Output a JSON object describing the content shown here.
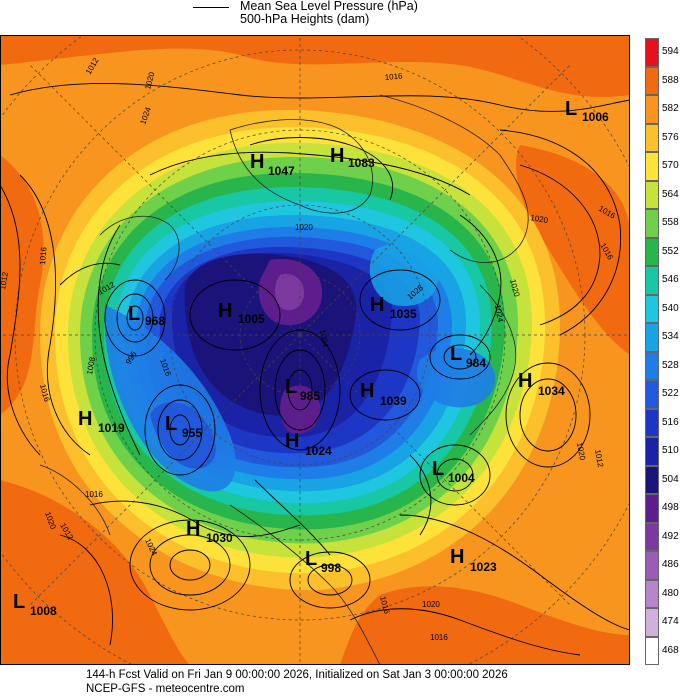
{
  "legend": {
    "pressure_label": "Mean Sea Level Pressure (hPa)",
    "heights_label": "500-hPa Heights (dam)"
  },
  "colorbar": {
    "labels": [
      "594",
      "588",
      "582",
      "576",
      "570",
      "564",
      "558",
      "552",
      "546",
      "540",
      "534",
      "528",
      "522",
      "516",
      "510",
      "504",
      "498",
      "492",
      "486",
      "480",
      "474",
      "468"
    ],
    "colors": [
      "#e8101c",
      "#f26a10",
      "#f7951e",
      "#fbc02b",
      "#fde23a",
      "#c7e23b",
      "#6fd049",
      "#28b54c",
      "#18c7a4",
      "#1ec6e0",
      "#18a4e4",
      "#1e7de6",
      "#2158dc",
      "#1d36c5",
      "#1a22a6",
      "#1a147a",
      "#5e1d8d",
      "#7c3aa0",
      "#9a5cb5",
      "#b785c9",
      "#d2b0dc",
      "#ffffff"
    ]
  },
  "systems": [
    {
      "type": "H",
      "value": "1047"
    },
    {
      "type": "H",
      "value": "1083"
    },
    {
      "type": "L",
      "value": "1006"
    },
    {
      "type": "L",
      "value": "968"
    },
    {
      "type": "H",
      "value": "1005"
    },
    {
      "type": "H",
      "value": "1035"
    },
    {
      "type": "L",
      "value": "984"
    },
    {
      "type": "H",
      "value": "1034"
    },
    {
      "type": "L",
      "value": "955"
    },
    {
      "type": "L",
      "value": "985"
    },
    {
      "type": "H",
      "value": "1039"
    },
    {
      "type": "H",
      "value": "1019"
    },
    {
      "type": "H",
      "value": "1024"
    },
    {
      "type": "L",
      "value": "1004"
    },
    {
      "type": "H",
      "value": "1030"
    },
    {
      "type": "L",
      "value": "998"
    },
    {
      "type": "H",
      "value": "1023"
    },
    {
      "type": "L",
      "value": "1008"
    }
  ],
  "isobar_labels": [
    "1012",
    "1020",
    "1016",
    "1024",
    "1016",
    "1012",
    "1020",
    "1016",
    "1012",
    "1008",
    "1016",
    "1020",
    "1024",
    "1016",
    "1012",
    "1016",
    "1020",
    "1020",
    "1012",
    "1020",
    "1016",
    "1024",
    "1016",
    "1020",
    "1004",
    "996",
    "1028",
    "1016"
  ],
  "footer": {
    "line1": "144-h Fcst Valid on Fri Jan  9 00:00:00 2026, Initialized on Sat Jan  3 00:00:00 2026",
    "line2": "NCEP-GFS  - meteocentre.com"
  }
}
